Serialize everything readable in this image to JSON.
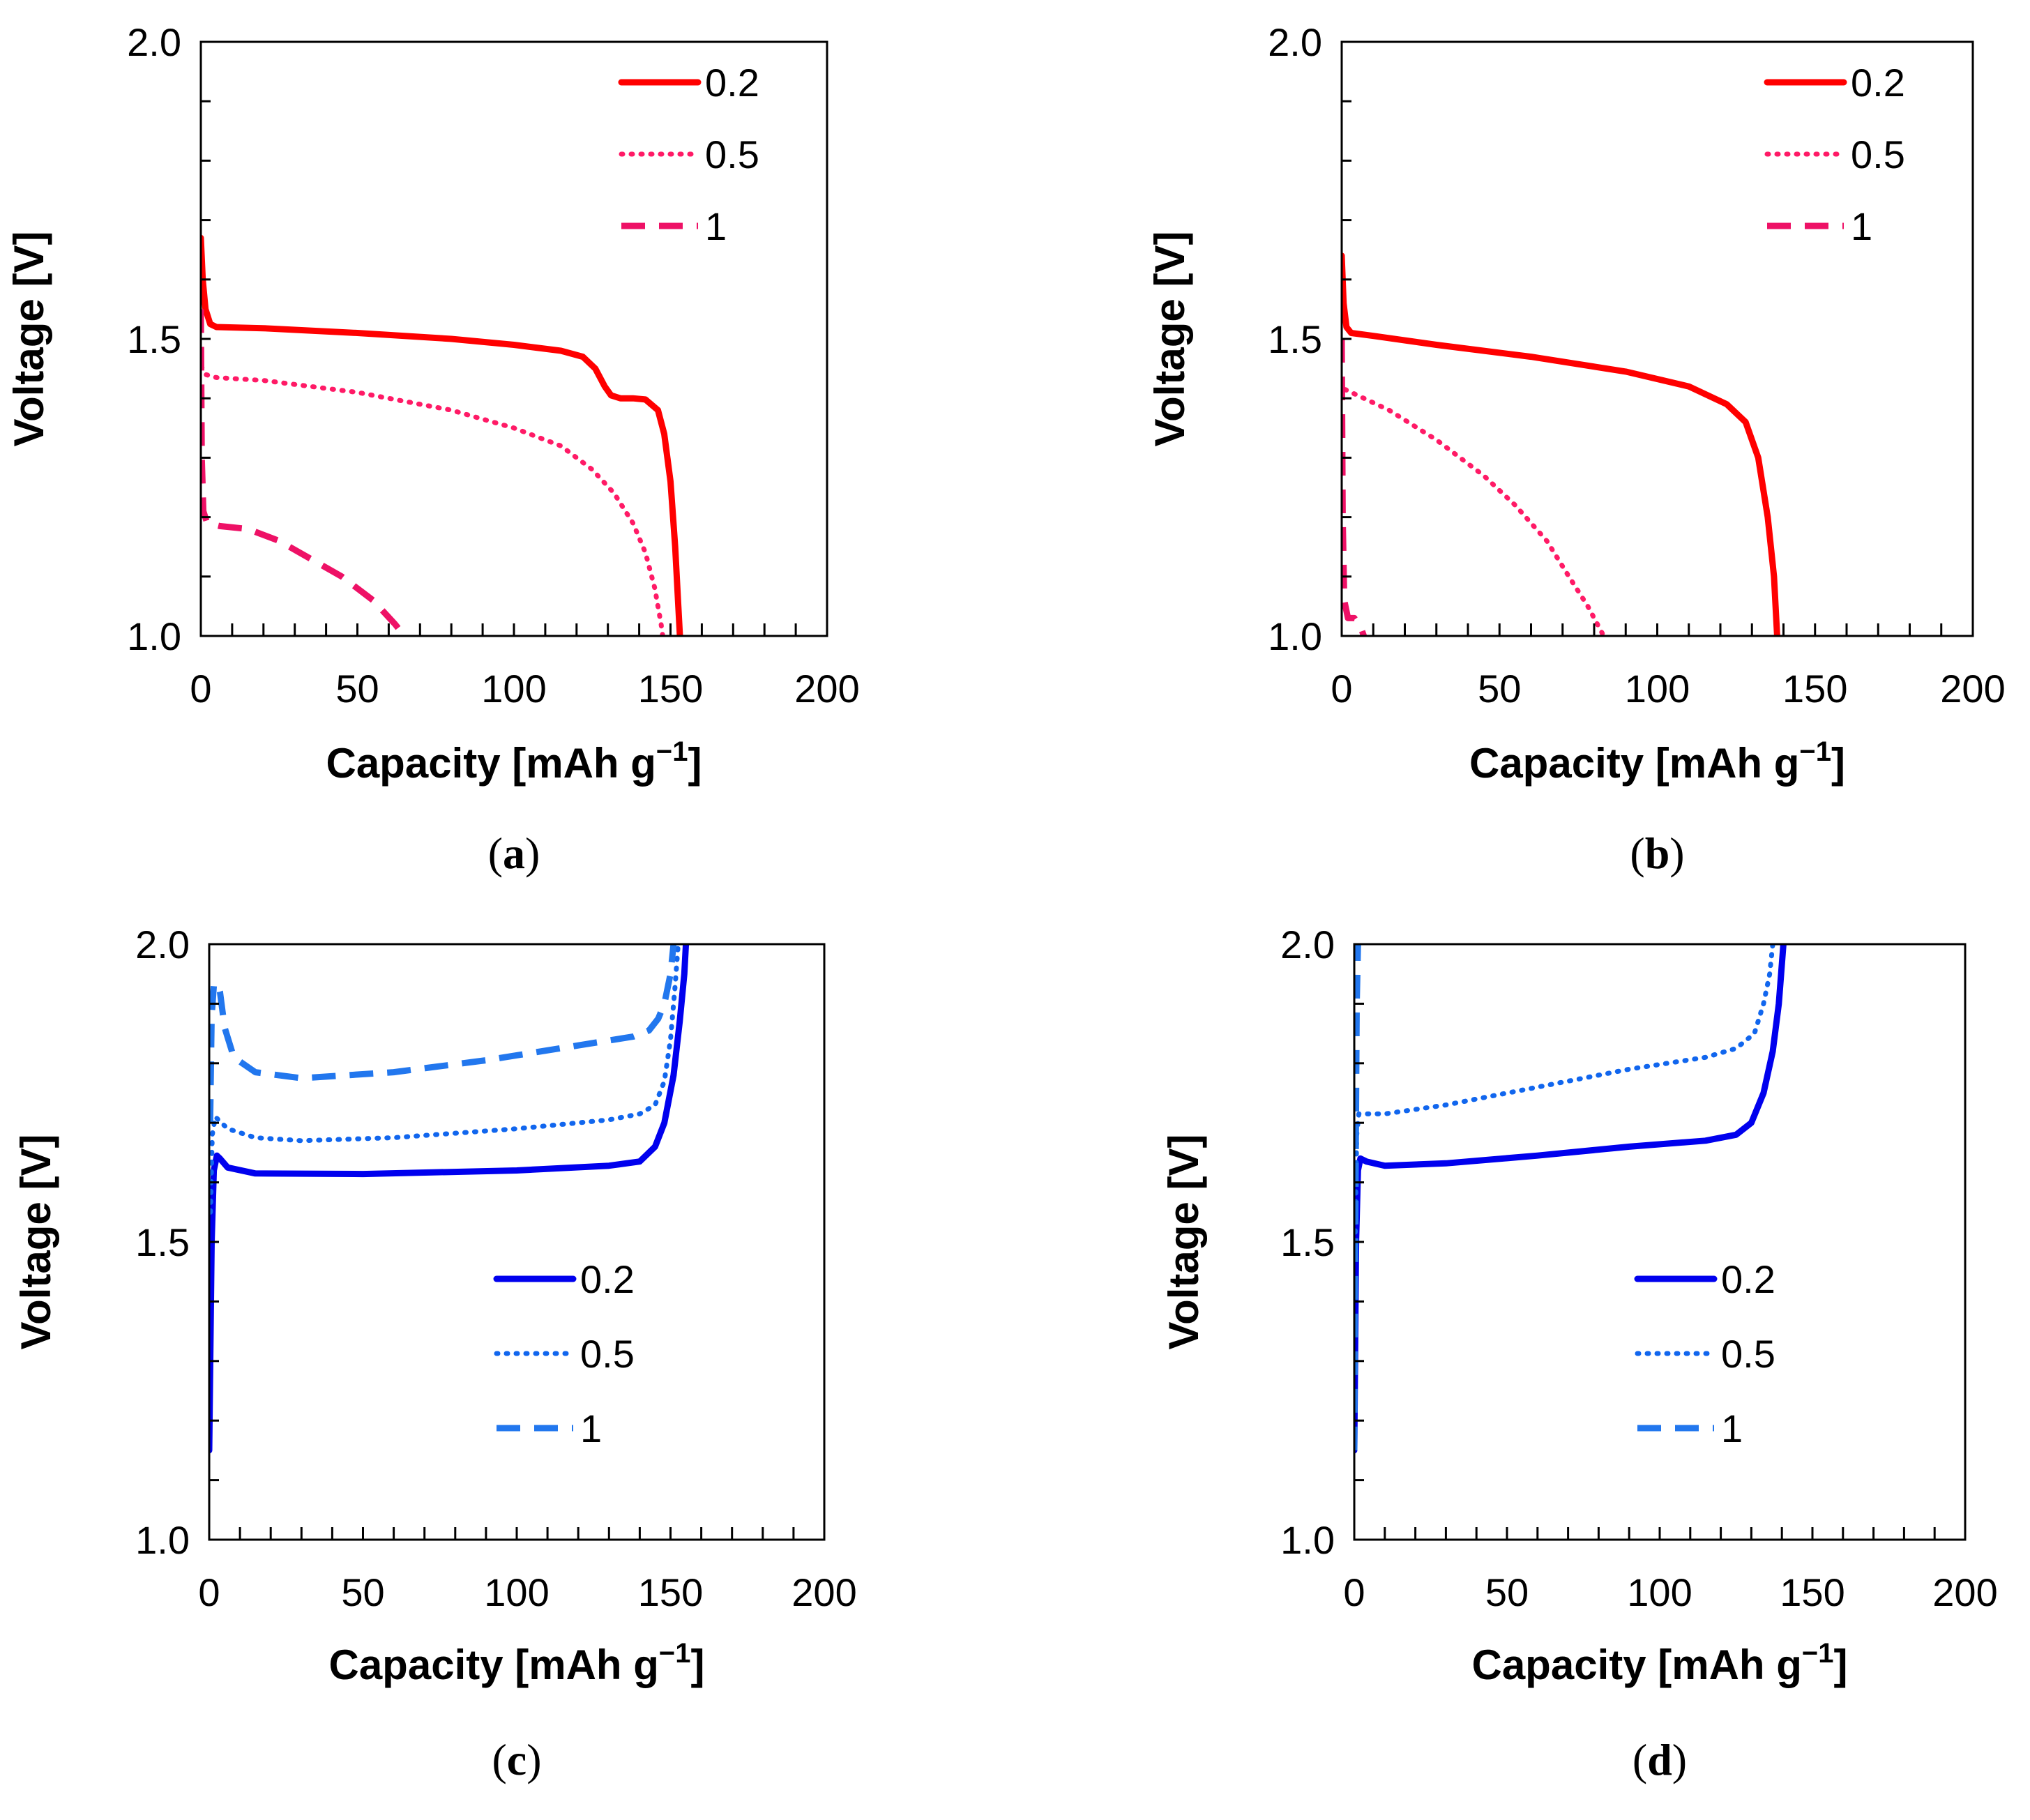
{
  "chart_data": [
    {
      "panel": "(a)",
      "panel_letter": "a",
      "type": "line",
      "xlabel": "Capacity [mAh g",
      "xlabel_sup": "−1",
      "xlabel_end": "]",
      "ylabel": "Voltage [V]",
      "xlim": [
        0,
        200
      ],
      "ylim": [
        1.0,
        2.0
      ],
      "xticks": [
        0,
        50,
        100,
        150,
        200
      ],
      "yticks": [
        1.0,
        1.5,
        2.0
      ],
      "x_tick_labels": [
        "0",
        "50",
        "100",
        "150",
        "200"
      ],
      "y_tick_labels": [
        "1.0",
        "1.5",
        "2.0"
      ],
      "legend_position": "top-right",
      "series": [
        {
          "name": "0.2",
          "color": "#ff0000",
          "style": "solid",
          "points": [
            [
              0,
              1.67
            ],
            [
              0.6,
              1.6
            ],
            [
              1.5,
              1.55
            ],
            [
              3,
              1.525
            ],
            [
              5,
              1.52
            ],
            [
              20,
              1.518
            ],
            [
              50,
              1.51
            ],
            [
              80,
              1.5
            ],
            [
              100,
              1.49
            ],
            [
              115,
              1.48
            ],
            [
              122,
              1.47
            ],
            [
              126,
              1.45
            ],
            [
              129,
              1.42
            ],
            [
              131,
              1.405
            ],
            [
              134,
              1.4
            ],
            [
              138,
              1.4
            ],
            [
              142,
              1.398
            ],
            [
              146,
              1.38
            ],
            [
              148,
              1.34
            ],
            [
              150,
              1.26
            ],
            [
              151.5,
              1.15
            ],
            [
              152.5,
              1.05
            ],
            [
              153,
              1.0
            ]
          ]
        },
        {
          "name": "0.5",
          "color": "#ff1a66",
          "style": "dotted",
          "points": [
            [
              0,
              1.47
            ],
            [
              0.4,
              1.45
            ],
            [
              1.5,
              1.44
            ],
            [
              5,
              1.435
            ],
            [
              20,
              1.43
            ],
            [
              50,
              1.41
            ],
            [
              80,
              1.38
            ],
            [
              100,
              1.35
            ],
            [
              115,
              1.32
            ],
            [
              125,
              1.28
            ],
            [
              132,
              1.24
            ],
            [
              138,
              1.19
            ],
            [
              142,
              1.14
            ],
            [
              145,
              1.08
            ],
            [
              147,
              1.02
            ],
            [
              147.5,
              1.0
            ]
          ]
        },
        {
          "name": "1",
          "color": "#ee1166",
          "style": "dashed",
          "points": [
            [
              0,
              1.55
            ],
            [
              0.3,
              1.3
            ],
            [
              0.8,
              1.21
            ],
            [
              2,
              1.19
            ],
            [
              6,
              1.185
            ],
            [
              15,
              1.18
            ],
            [
              25,
              1.16
            ],
            [
              35,
              1.13
            ],
            [
              45,
              1.1
            ],
            [
              55,
              1.06
            ],
            [
              62,
              1.02
            ],
            [
              65,
              1.0
            ]
          ]
        }
      ]
    },
    {
      "panel": "(b)",
      "panel_letter": "b",
      "type": "line",
      "xlabel": "Capacity [mAh g",
      "xlabel_sup": "−1",
      "xlabel_end": "]",
      "ylabel": "Voltage [V]",
      "xlim": [
        0,
        200
      ],
      "ylim": [
        1.0,
        2.0
      ],
      "xticks": [
        0,
        50,
        100,
        150,
        200
      ],
      "yticks": [
        1.0,
        1.5,
        2.0
      ],
      "x_tick_labels": [
        "0",
        "50",
        "100",
        "150",
        "200"
      ],
      "y_tick_labels": [
        "1.0",
        "1.5",
        "2.0"
      ],
      "legend_position": "top-right",
      "series": [
        {
          "name": "0.2",
          "color": "#ff0000",
          "style": "solid",
          "points": [
            [
              0,
              1.64
            ],
            [
              0.6,
              1.56
            ],
            [
              1.5,
              1.52
            ],
            [
              3,
              1.51
            ],
            [
              10,
              1.505
            ],
            [
              30,
              1.49
            ],
            [
              60,
              1.47
            ],
            [
              90,
              1.445
            ],
            [
              110,
              1.42
            ],
            [
              122,
              1.39
            ],
            [
              128,
              1.36
            ],
            [
              132,
              1.3
            ],
            [
              135,
              1.2
            ],
            [
              137,
              1.1
            ],
            [
              138,
              1.0
            ]
          ]
        },
        {
          "name": "0.5",
          "color": "#ff1a66",
          "style": "dotted",
          "points": [
            [
              0,
              1.43
            ],
            [
              1,
              1.415
            ],
            [
              5,
              1.405
            ],
            [
              15,
              1.38
            ],
            [
              30,
              1.33
            ],
            [
              45,
              1.27
            ],
            [
              55,
              1.22
            ],
            [
              65,
              1.16
            ],
            [
              72,
              1.1
            ],
            [
              78,
              1.05
            ],
            [
              82,
              1.01
            ],
            [
              83,
              1.0
            ]
          ]
        },
        {
          "name": "1",
          "color": "#ee1166",
          "style": "dashed",
          "points": [
            [
              0,
              1.5
            ],
            [
              0.3,
              1.2
            ],
            [
              0.8,
              1.06
            ],
            [
              2,
              1.03
            ],
            [
              4,
              1.03
            ],
            [
              6,
              1.015
            ],
            [
              7,
              1.0
            ]
          ]
        }
      ]
    },
    {
      "panel": "(c)",
      "panel_letter": "c",
      "type": "line",
      "xlabel": "Capacity [mAh g",
      "xlabel_sup": "−1",
      "xlabel_end": "]",
      "ylabel": "Voltage [V]",
      "xlim": [
        0,
        200
      ],
      "ylim": [
        1.0,
        2.0
      ],
      "xticks": [
        0,
        50,
        100,
        150,
        200
      ],
      "yticks": [
        1.0,
        1.5,
        2.0
      ],
      "x_tick_labels": [
        "0",
        "50",
        "100",
        "150",
        "200"
      ],
      "y_tick_labels": [
        "1.0",
        "1.5",
        "2.0"
      ],
      "legend_position": "center-right",
      "series": [
        {
          "name": "0.2",
          "color": "#0000ee",
          "style": "solid",
          "points": [
            [
              0,
              1.15
            ],
            [
              0.8,
              1.5
            ],
            [
              1.5,
              1.62
            ],
            [
              2.5,
              1.645
            ],
            [
              3.5,
              1.64
            ],
            [
              6,
              1.625
            ],
            [
              15,
              1.615
            ],
            [
              50,
              1.614
            ],
            [
              100,
              1.62
            ],
            [
              130,
              1.628
            ],
            [
              140,
              1.635
            ],
            [
              145,
              1.66
            ],
            [
              148,
              1.7
            ],
            [
              151,
              1.78
            ],
            [
              153,
              1.87
            ],
            [
              154.5,
              1.95
            ],
            [
              155,
              2.0
            ]
          ]
        },
        {
          "name": "0.5",
          "color": "#1166ee",
          "style": "dotted",
          "points": [
            [
              0.4,
              1.55
            ],
            [
              1,
              1.68
            ],
            [
              2,
              1.71
            ],
            [
              3,
              1.705
            ],
            [
              6,
              1.69
            ],
            [
              15,
              1.675
            ],
            [
              30,
              1.67
            ],
            [
              60,
              1.675
            ],
            [
              100,
              1.69
            ],
            [
              130,
              1.705
            ],
            [
              140,
              1.715
            ],
            [
              145,
              1.73
            ],
            [
              148,
              1.77
            ],
            [
              150,
              1.84
            ],
            [
              151.5,
              1.93
            ],
            [
              152.5,
              2.0
            ]
          ]
        },
        {
          "name": "1",
          "color": "#2277ee",
          "style": "dashed",
          "points": [
            [
              0.3,
              1.7
            ],
            [
              0.8,
              1.88
            ],
            [
              1.5,
              1.93
            ],
            [
              2.5,
              1.935
            ],
            [
              3.5,
              1.92
            ],
            [
              5,
              1.86
            ],
            [
              8,
              1.81
            ],
            [
              15,
              1.785
            ],
            [
              30,
              1.775
            ],
            [
              60,
              1.785
            ],
            [
              90,
              1.805
            ],
            [
              120,
              1.83
            ],
            [
              138,
              1.845
            ],
            [
              143,
              1.855
            ],
            [
              146,
              1.875
            ],
            [
              148,
              1.9
            ],
            [
              150,
              1.95
            ],
            [
              151,
              2.0
            ]
          ]
        }
      ]
    },
    {
      "panel": "(d)",
      "panel_letter": "d",
      "type": "line",
      "xlabel": "Capacity [mAh g",
      "xlabel_sup": "−1",
      "xlabel_end": "]",
      "ylabel": "Voltage [V]",
      "xlim": [
        0,
        200
      ],
      "ylim": [
        1.0,
        2.0
      ],
      "xticks": [
        0,
        50,
        100,
        150,
        200
      ],
      "yticks": [
        1.0,
        1.5,
        2.0
      ],
      "x_tick_labels": [
        "0",
        "50",
        "100",
        "150",
        "200"
      ],
      "y_tick_labels": [
        "1.0",
        "1.5",
        "2.0"
      ],
      "legend_position": "center-right",
      "series": [
        {
          "name": "0.2",
          "color": "#0000ee",
          "style": "solid",
          "points": [
            [
              0,
              1.15
            ],
            [
              0.6,
              1.5
            ],
            [
              1.2,
              1.62
            ],
            [
              2,
              1.64
            ],
            [
              4,
              1.635
            ],
            [
              10,
              1.628
            ],
            [
              30,
              1.632
            ],
            [
              60,
              1.645
            ],
            [
              90,
              1.66
            ],
            [
              115,
              1.67
            ],
            [
              125,
              1.68
            ],
            [
              130,
              1.7
            ],
            [
              134,
              1.75
            ],
            [
              137,
              1.82
            ],
            [
              139,
              1.9
            ],
            [
              140.5,
              2.0
            ]
          ]
        },
        {
          "name": "0.5",
          "color": "#1166ee",
          "style": "dotted",
          "points": [
            [
              0.3,
              1.5
            ],
            [
              0.8,
              1.68
            ],
            [
              1.5,
              1.715
            ],
            [
              3,
              1.715
            ],
            [
              10,
              1.715
            ],
            [
              30,
              1.73
            ],
            [
              60,
              1.76
            ],
            [
              90,
              1.79
            ],
            [
              115,
              1.81
            ],
            [
              125,
              1.825
            ],
            [
              131,
              1.85
            ],
            [
              134,
              1.9
            ],
            [
              136,
              1.95
            ],
            [
              137,
              2.0
            ]
          ]
        },
        {
          "name": "1",
          "color": "#2277ee",
          "style": "dashed",
          "points": [
            [
              0,
              1.15
            ],
            [
              0.3,
              1.5
            ],
            [
              0.8,
              1.9
            ],
            [
              1.2,
              2.0
            ]
          ]
        }
      ]
    }
  ]
}
